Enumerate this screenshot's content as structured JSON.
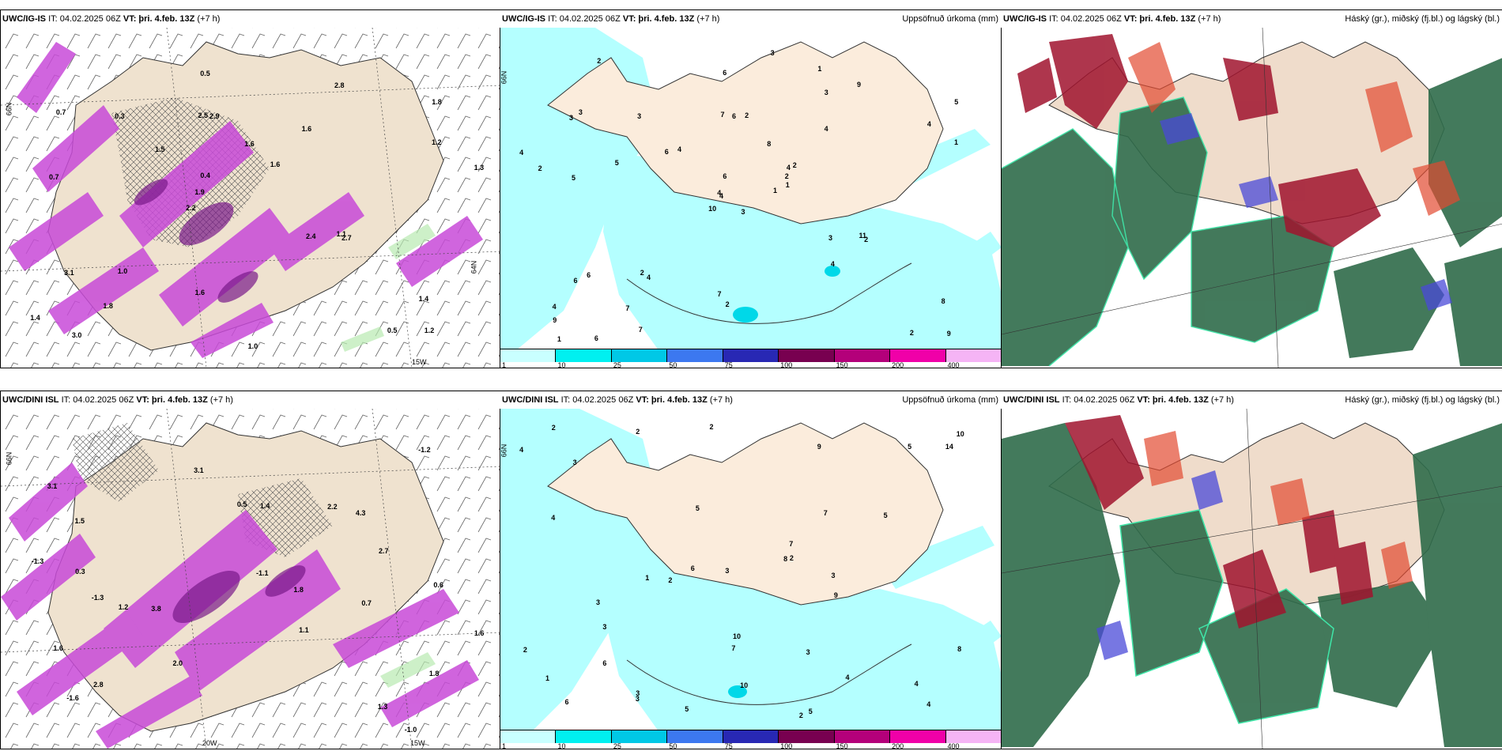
{
  "row1": {
    "p1": {
      "model": "UWC/IG-IS",
      "it": "IT: 04.02.2025 06Z",
      "vt_label": "VT:",
      "vt": "þri. 4.feb. 13Z",
      "lead": "(+7 h)",
      "title_right": ""
    },
    "p2": {
      "model": "UWC/IG-IS",
      "it": "IT: 04.02.2025 06Z",
      "vt_label": "VT:",
      "vt": "þri. 4.feb. 13Z",
      "lead": "(+7 h)",
      "title_right": "Uppsöfnuð úrkoma (mm)"
    },
    "p3": {
      "model": "UWC/IG-IS",
      "it": "IT: 04.02.2025 06Z",
      "vt_label": "VT:",
      "vt": "þri. 4.feb. 13Z",
      "lead": "(+7 h)",
      "title_right": "Háský (gr.), miðský (fj.bl.) og lágský (bl.)"
    }
  },
  "row2": {
    "p1": {
      "model": "UWC/DINI ISL",
      "it": "IT: 04.02.2025 06Z",
      "vt_label": "VT:",
      "vt": "þri. 4.feb. 13Z",
      "lead": "(+7 h)",
      "title_right": ""
    },
    "p2": {
      "model": "UWC/DINI ISL",
      "it": "IT: 04.02.2025 06Z",
      "vt_label": "VT:",
      "vt": "þri. 4.feb. 13Z",
      "lead": "(+7 h)",
      "title_right": "Uppsöfnuð úrkoma (mm)"
    },
    "p3": {
      "model": "UWC/DINI ISL",
      "it": "IT: 04.02.2025 06Z",
      "vt_label": "VT:",
      "vt": "þri. 4.feb. 13Z",
      "lead": "(+7 h)",
      "title_right": "Háský (gr.), miðský (fj.bl.) og lágský (bl.)"
    }
  },
  "precip_legend": {
    "ticks": [
      "1",
      "10",
      "25",
      "50",
      "75",
      "100",
      "150",
      "200",
      "400"
    ],
    "colors": [
      "#c9ffff",
      "#00f0f0",
      "#00c8e6",
      "#3c78f0",
      "#2828b4",
      "#780050",
      "#b4007a",
      "#f000a8",
      "#f5b4f5"
    ]
  },
  "axis_labels": {
    "lat66": "66N",
    "lat64": "64N",
    "lon20": "20W",
    "lon15": "15W"
  },
  "temp_labels_row1": [
    "1.2",
    "0.7",
    "1.8",
    "2.2",
    "1.6",
    "3.0",
    "2.5",
    "1.6",
    "3.1",
    "1.5",
    "1.4",
    "1.8",
    "2.9",
    "1.6",
    "2.7",
    "0.7",
    "0.5",
    "1.3",
    "2.4",
    "1.2",
    "1.9",
    "1.6",
    "0.4",
    "0.3",
    "2.8",
    "1.0",
    "0.5",
    "1.4",
    "1.1",
    "1.0"
  ],
  "temp_labels_row2": [
    "-1.0",
    "-1.3",
    "1.1",
    "3.1",
    "1.8",
    "1.5",
    "2.8",
    "3.8",
    "4.3",
    "0.5",
    "2.2",
    "1.3",
    "2.0",
    "3.1",
    "1.8",
    "1.6",
    "0.7",
    "-1.1",
    "-1.3",
    "-1.6",
    "-1.2",
    "1.4",
    "2.7",
    "1.6",
    "0.6",
    "0.3",
    "1.2"
  ],
  "precip_labels_row1": [
    "3",
    "3",
    "4",
    "4",
    "4",
    "4",
    "1",
    "2",
    "3",
    "1",
    "2",
    "9",
    "5",
    "5",
    "10",
    "4",
    "6",
    "7",
    "8",
    "6",
    "4",
    "9",
    "7",
    "6",
    "2",
    "2",
    "3",
    "6",
    "2",
    "3",
    "1",
    "4",
    "7",
    "6",
    "3",
    "9",
    "2",
    "2",
    "8",
    "11",
    "3",
    "6",
    "5",
    "4",
    "7",
    "4",
    "2",
    "1",
    "2",
    "1",
    "6",
    "4"
  ],
  "precip_labels_row2": [
    "5",
    "2",
    "3",
    "4",
    "2",
    "3",
    "1",
    "4",
    "2",
    "5",
    "5",
    "10",
    "6",
    "7",
    "9",
    "8",
    "4",
    "3",
    "2",
    "4",
    "3",
    "10",
    "7",
    "6",
    "5",
    "3",
    "2",
    "3",
    "2",
    "9",
    "3",
    "5",
    "10",
    "14",
    "6",
    "3",
    "8",
    "1",
    "7",
    "4",
    "2"
  ]
}
